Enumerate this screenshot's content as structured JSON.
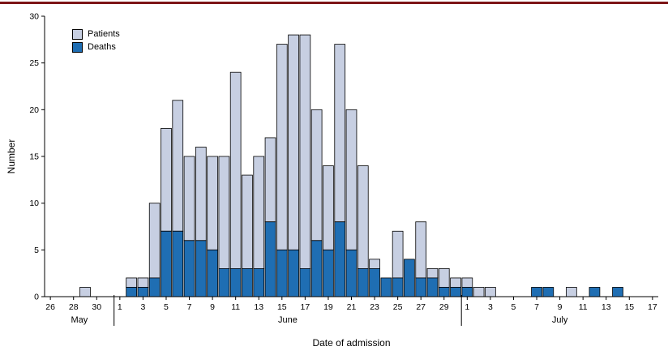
{
  "figure": {
    "accent_rule_color": "#7d1517"
  },
  "chart_data": {
    "type": "bar",
    "stacked": true,
    "title": "",
    "xlabel": "Date of admission",
    "ylabel": "Number",
    "ylim": [
      0,
      30
    ],
    "yticks": [
      0,
      5,
      10,
      15,
      20,
      25,
      30
    ],
    "grid": false,
    "legend_position": "top-left",
    "x_tick_every": 2,
    "legend": {
      "patients": "Patients",
      "deaths": "Deaths"
    },
    "colors": {
      "patients": "#c7cfe2",
      "deaths": "#1f6eb3",
      "bar_outline": "#000000"
    },
    "months": [
      {
        "name": "May",
        "num_days": 6
      },
      {
        "name": "June",
        "num_days": 30
      },
      {
        "name": "July",
        "num_days": 17
      }
    ],
    "x_day_numbers": [
      26,
      27,
      28,
      29,
      30,
      31,
      1,
      2,
      3,
      4,
      5,
      6,
      7,
      8,
      9,
      10,
      11,
      12,
      13,
      14,
      15,
      16,
      17,
      18,
      19,
      20,
      21,
      22,
      23,
      24,
      25,
      26,
      27,
      28,
      29,
      30,
      1,
      2,
      3,
      4,
      5,
      6,
      7,
      8,
      9,
      10,
      11,
      12,
      13,
      14,
      15,
      16,
      17
    ],
    "series": [
      {
        "name": "Patients",
        "note": "total bar height (admissions per day), values estimated from axis",
        "values": [
          0,
          0,
          0,
          1,
          0,
          0,
          0,
          2,
          2,
          10,
          18,
          21,
          15,
          16,
          15,
          15,
          24,
          13,
          15,
          17,
          27,
          28,
          28,
          20,
          14,
          27,
          20,
          14,
          4,
          2,
          7,
          4,
          8,
          3,
          3,
          2,
          2,
          1,
          1,
          0,
          0,
          0,
          1,
          1,
          0,
          1,
          0,
          1,
          0,
          1,
          0,
          0,
          0
        ]
      },
      {
        "name": "Deaths",
        "note": "dark segment stacked at base of each bar, values estimated from axis",
        "values": [
          0,
          0,
          0,
          0,
          0,
          0,
          0,
          1,
          1,
          2,
          7,
          7,
          6,
          6,
          5,
          3,
          3,
          3,
          3,
          8,
          5,
          5,
          3,
          6,
          5,
          8,
          5,
          3,
          3,
          2,
          2,
          4,
          2,
          2,
          1,
          1,
          1,
          0,
          0,
          0,
          0,
          0,
          1,
          1,
          0,
          0,
          0,
          1,
          0,
          1,
          0,
          0,
          0
        ]
      }
    ]
  }
}
